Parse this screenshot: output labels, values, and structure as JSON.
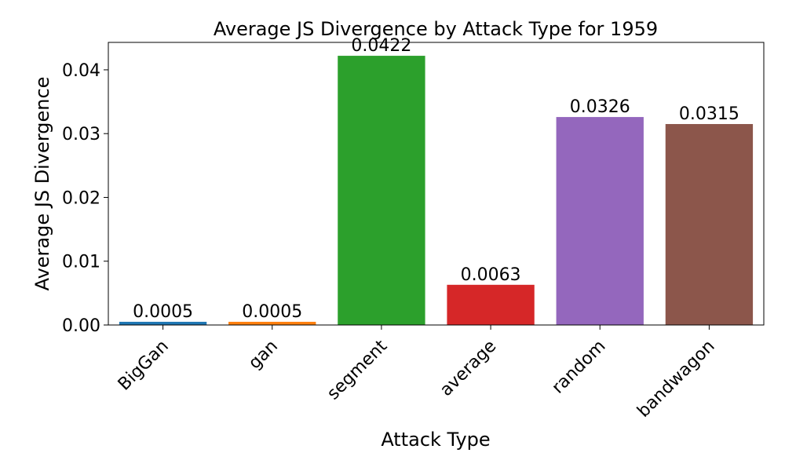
{
  "chart_data": {
    "type": "bar",
    "title": "Average JS Divergence by Attack Type for 1959",
    "xlabel": "Attack Type",
    "ylabel": "Average JS Divergence",
    "categories": [
      "BigGan",
      "gan",
      "segment",
      "average",
      "random",
      "bandwagon"
    ],
    "values": [
      0.0005,
      0.0005,
      0.0422,
      0.0063,
      0.0326,
      0.0315
    ],
    "data_labels": [
      "0.0005",
      "0.0005",
      "0.0422",
      "0.0063",
      "0.0326",
      "0.0315"
    ],
    "colors": [
      "#1f77b4",
      "#ff7f0e",
      "#2ca02c",
      "#d62728",
      "#9467bd",
      "#8c564b"
    ],
    "ylim": [
      0,
      0.0443
    ],
    "yticks": [
      0,
      0.01,
      0.02,
      0.03,
      0.04
    ],
    "ytick_labels": [
      "0.00",
      "0.01",
      "0.02",
      "0.03",
      "0.04"
    ],
    "grid": false,
    "legend": false
  }
}
